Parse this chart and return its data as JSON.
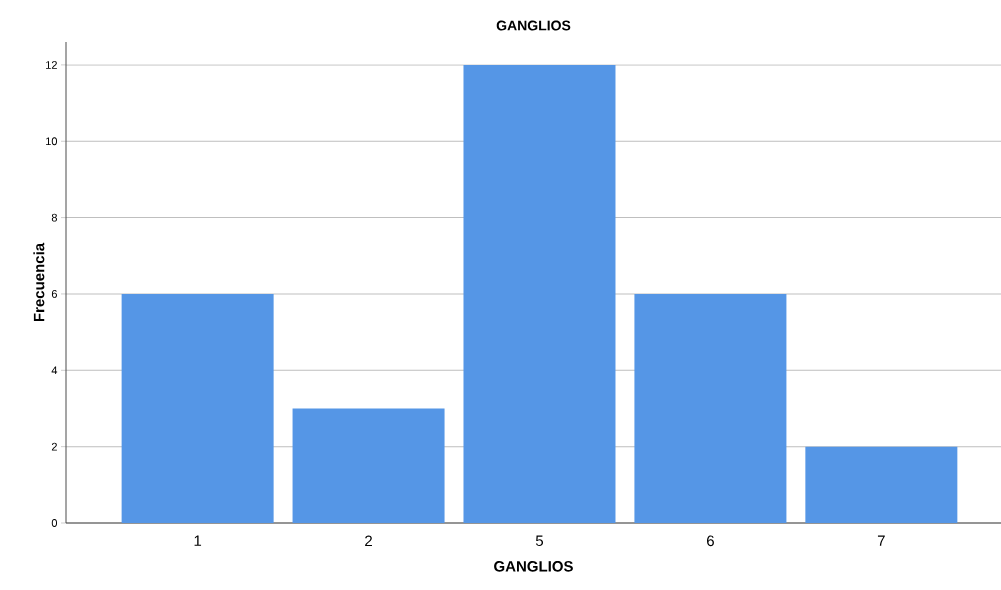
{
  "chart_data": {
    "type": "bar",
    "title": "GANGLIOS",
    "xlabel": "GANGLIOS",
    "ylabel": "Frecuencia",
    "categories": [
      "1",
      "2",
      "5",
      "6",
      "7"
    ],
    "values": [
      6,
      3,
      12,
      6,
      2
    ],
    "color": "#5596e6",
    "ylim": [
      0,
      12.6
    ],
    "yticks": [
      0,
      2,
      4,
      6,
      8,
      10,
      12
    ],
    "grid": "y"
  }
}
